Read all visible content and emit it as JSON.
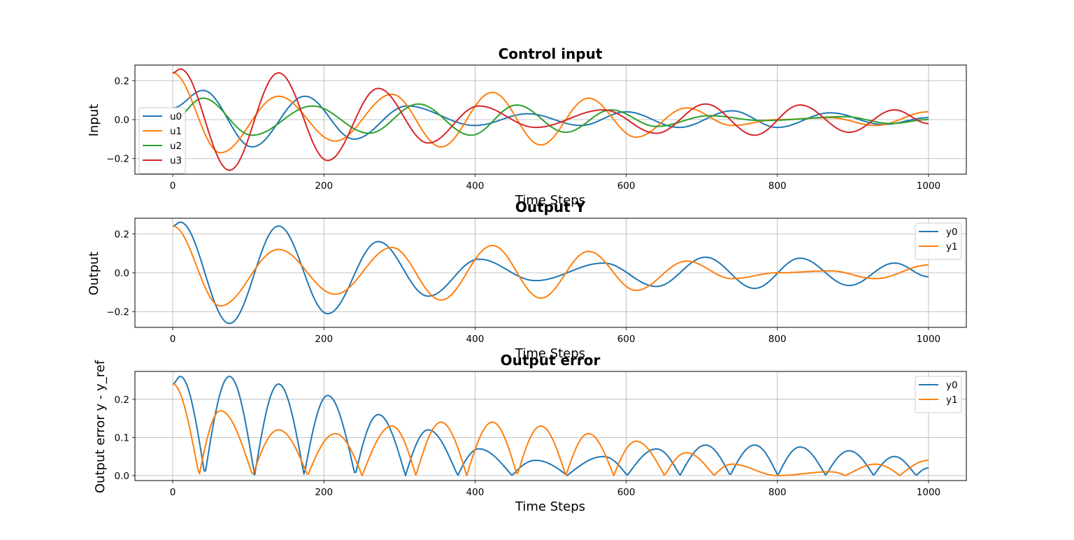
{
  "colors": {
    "c0": "#1f77b4",
    "c1": "#ff7f0e",
    "c2": "#2ca02c",
    "c3": "#d62728",
    "grid": "#b0b0b0"
  },
  "chart_data": [
    {
      "type": "line",
      "title": "Control input",
      "xlabel": "Time Steps",
      "ylabel": "Input",
      "xlim": [
        -50,
        1050
      ],
      "ylim": [
        -0.28,
        0.28
      ],
      "xticks": [
        0,
        200,
        400,
        600,
        800,
        1000
      ],
      "yticks": [
        -0.2,
        0.0,
        0.2
      ],
      "ytick_labels": [
        "−0.2",
        "0.0",
        "0.2"
      ],
      "grid": true,
      "legend": "center-left",
      "series": [
        {
          "name": "u0",
          "color": "#1f77b4",
          "peaks": [
            [
              0,
              0.06
            ],
            [
              40,
              0.15
            ],
            [
              105,
              -0.14
            ],
            [
              175,
              0.12
            ],
            [
              240,
              -0.1
            ],
            [
              310,
              0.07
            ],
            [
              400,
              -0.03
            ],
            [
              470,
              0.03
            ],
            [
              540,
              -0.03
            ],
            [
              600,
              0.04
            ],
            [
              670,
              -0.04
            ],
            [
              740,
              0.045
            ],
            [
              800,
              -0.04
            ],
            [
              870,
              0.035
            ],
            [
              940,
              -0.025
            ],
            [
              1000,
              0.01
            ]
          ]
        },
        {
          "name": "u1",
          "color": "#ff7f0e",
          "peaks": [
            [
              0,
              0.24
            ],
            [
              63,
              -0.17
            ],
            [
              140,
              0.12
            ],
            [
              215,
              -0.11
            ],
            [
              290,
              0.13
            ],
            [
              355,
              -0.14
            ],
            [
              423,
              0.14
            ],
            [
              487,
              -0.13
            ],
            [
              550,
              0.11
            ],
            [
              613,
              -0.09
            ],
            [
              680,
              0.06
            ],
            [
              740,
              -0.03
            ],
            [
              800,
              0.0
            ],
            [
              870,
              0.01
            ],
            [
              930,
              -0.03
            ],
            [
              1000,
              0.04
            ]
          ]
        },
        {
          "name": "u2",
          "color": "#2ca02c",
          "peaks": [
            [
              0,
              0.0
            ],
            [
              40,
              0.11
            ],
            [
              105,
              -0.08
            ],
            [
              185,
              0.07
            ],
            [
              260,
              -0.07
            ],
            [
              325,
              0.08
            ],
            [
              395,
              -0.08
            ],
            [
              455,
              0.075
            ],
            [
              520,
              -0.065
            ],
            [
              580,
              0.05
            ],
            [
              640,
              -0.035
            ],
            [
              710,
              0.02
            ],
            [
              780,
              -0.005
            ],
            [
              890,
              0.015
            ],
            [
              950,
              -0.02
            ],
            [
              1000,
              0.0
            ]
          ]
        },
        {
          "name": "u3",
          "color": "#d62728",
          "peaks": [
            [
              0,
              0.24
            ],
            [
              10,
              0.26
            ],
            [
              75,
              -0.26
            ],
            [
              140,
              0.24
            ],
            [
              205,
              -0.21
            ],
            [
              272,
              0.16
            ],
            [
              338,
              -0.12
            ],
            [
              405,
              0.07
            ],
            [
              480,
              -0.04
            ],
            [
              570,
              0.05
            ],
            [
              640,
              -0.07
            ],
            [
              705,
              0.08
            ],
            [
              770,
              -0.08
            ],
            [
              830,
              0.075
            ],
            [
              895,
              -0.065
            ],
            [
              955,
              0.05
            ],
            [
              1000,
              -0.02
            ]
          ]
        }
      ]
    },
    {
      "type": "line",
      "title": "Output Y",
      "xlabel": "Time Steps",
      "ylabel": "Output",
      "xlim": [
        -50,
        1050
      ],
      "ylim": [
        -0.28,
        0.28
      ],
      "xticks": [
        0,
        200,
        400,
        600,
        800,
        1000
      ],
      "yticks": [
        -0.2,
        0.0,
        0.2
      ],
      "ytick_labels": [
        "−0.2",
        "0.0",
        "0.2"
      ],
      "grid": true,
      "legend": "upper right",
      "series": [
        {
          "name": "y0",
          "color": "#1f77b4",
          "peaks": [
            [
              0,
              0.24
            ],
            [
              10,
              0.26
            ],
            [
              75,
              -0.26
            ],
            [
              140,
              0.24
            ],
            [
              205,
              -0.21
            ],
            [
              272,
              0.16
            ],
            [
              338,
              -0.12
            ],
            [
              405,
              0.07
            ],
            [
              480,
              -0.04
            ],
            [
              570,
              0.05
            ],
            [
              640,
              -0.07
            ],
            [
              705,
              0.08
            ],
            [
              770,
              -0.08
            ],
            [
              830,
              0.075
            ],
            [
              895,
              -0.065
            ],
            [
              955,
              0.05
            ],
            [
              1000,
              -0.02
            ]
          ]
        },
        {
          "name": "y1",
          "color": "#ff7f0e",
          "peaks": [
            [
              0,
              0.24
            ],
            [
              63,
              -0.17
            ],
            [
              140,
              0.12
            ],
            [
              215,
              -0.11
            ],
            [
              290,
              0.13
            ],
            [
              355,
              -0.14
            ],
            [
              423,
              0.14
            ],
            [
              487,
              -0.13
            ],
            [
              550,
              0.11
            ],
            [
              613,
              -0.09
            ],
            [
              680,
              0.06
            ],
            [
              740,
              -0.03
            ],
            [
              800,
              0.0
            ],
            [
              870,
              0.01
            ],
            [
              930,
              -0.03
            ],
            [
              1000,
              0.04
            ]
          ]
        }
      ]
    },
    {
      "type": "line",
      "title": "Output error",
      "xlabel": "Time Steps",
      "ylabel": "Output error y - y_ref",
      "xlim": [
        -50,
        1050
      ],
      "ylim": [
        -0.013,
        0.273
      ],
      "xticks": [
        0,
        200,
        400,
        600,
        800,
        1000
      ],
      "yticks": [
        0.0,
        0.1,
        0.2
      ],
      "ytick_labels": [
        "0.0",
        "0.1",
        "0.2"
      ],
      "grid": true,
      "legend": "upper right",
      "absolute": true,
      "series": [
        {
          "name": "y0",
          "color": "#1f77b4",
          "peaks": [
            [
              0,
              0.24
            ],
            [
              10,
              0.26
            ],
            [
              75,
              -0.26
            ],
            [
              140,
              0.24
            ],
            [
              205,
              -0.21
            ],
            [
              272,
              0.16
            ],
            [
              338,
              -0.12
            ],
            [
              405,
              0.07
            ],
            [
              480,
              -0.04
            ],
            [
              570,
              0.05
            ],
            [
              640,
              -0.07
            ],
            [
              705,
              0.08
            ],
            [
              770,
              -0.08
            ],
            [
              830,
              0.075
            ],
            [
              895,
              -0.065
            ],
            [
              955,
              0.05
            ],
            [
              1000,
              -0.02
            ]
          ]
        },
        {
          "name": "y1",
          "color": "#ff7f0e",
          "peaks": [
            [
              0,
              0.24
            ],
            [
              63,
              -0.17
            ],
            [
              140,
              0.12
            ],
            [
              215,
              -0.11
            ],
            [
              290,
              0.13
            ],
            [
              355,
              -0.14
            ],
            [
              423,
              0.14
            ],
            [
              487,
              -0.13
            ],
            [
              550,
              0.11
            ],
            [
              613,
              -0.09
            ],
            [
              680,
              0.06
            ],
            [
              740,
              -0.03
            ],
            [
              800,
              0.0
            ],
            [
              870,
              0.01
            ],
            [
              930,
              -0.03
            ],
            [
              1000,
              0.04
            ]
          ]
        }
      ]
    }
  ]
}
